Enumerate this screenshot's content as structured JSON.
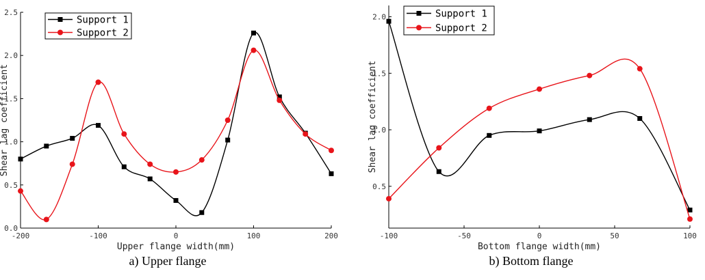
{
  "chart_data": [
    {
      "type": "line",
      "caption": "a) Upper flange",
      "xlabel": "Upper flange width(mm)",
      "ylabel": "Shear lag coefficient",
      "xlim": [
        -200,
        200
      ],
      "ylim": [
        0,
        2.5
      ],
      "xticks": [
        -200,
        -100,
        0,
        100,
        200
      ],
      "yticks": [
        0.0,
        0.5,
        1.0,
        1.5,
        2.0,
        2.5
      ],
      "ytick_labels": [
        "0.0",
        "0.5",
        "1.0",
        "1.5",
        "2.0",
        "2.5"
      ],
      "legend_position": "top-left",
      "series": [
        {
          "name": "Support 1",
          "color": "#000000",
          "marker": "square",
          "x": [
            -200,
            -166.7,
            -133.3,
            -100,
            -66.7,
            -33.3,
            0,
            33.3,
            66.7,
            100,
            133.3,
            166.7,
            200
          ],
          "y": [
            0.8,
            0.95,
            1.04,
            1.19,
            0.71,
            0.57,
            0.32,
            0.18,
            1.02,
            2.26,
            1.52,
            1.1,
            0.63
          ]
        },
        {
          "name": "Support 2",
          "color": "#e8141a",
          "marker": "circle",
          "x": [
            -200,
            -166.7,
            -133.3,
            -100,
            -66.7,
            -33.3,
            0,
            33.3,
            66.7,
            100,
            133.3,
            166.7,
            200
          ],
          "y": [
            0.43,
            0.1,
            0.74,
            1.69,
            1.09,
            0.74,
            0.65,
            0.79,
            1.25,
            2.06,
            1.48,
            1.09,
            0.9
          ]
        }
      ]
    },
    {
      "type": "line",
      "caption": "b) Bottom flange",
      "xlabel": "Bottom flange width(mm)",
      "ylabel": "Shear lag coefficient",
      "xlim": [
        -100,
        100
      ],
      "ylim": [
        0.13,
        2.1
      ],
      "xticks": [
        -100,
        -50,
        0,
        50,
        100
      ],
      "yticks": [
        0.5,
        1.0,
        1.5,
        2.0
      ],
      "ytick_labels": [
        "0.5",
        "1.0",
        "1.5",
        "2.0"
      ],
      "legend_position": "top-left",
      "series": [
        {
          "name": "Support 1",
          "color": "#000000",
          "marker": "square",
          "x": [
            -100,
            -66.7,
            -33.3,
            0,
            33.3,
            66.7,
            100
          ],
          "y": [
            1.96,
            0.63,
            0.95,
            0.99,
            1.09,
            1.1,
            0.29
          ]
        },
        {
          "name": "Support 2",
          "color": "#e8141a",
          "marker": "circle",
          "x": [
            -100,
            -66.7,
            -33.3,
            0,
            33.3,
            66.7,
            100
          ],
          "y": [
            0.39,
            0.84,
            1.19,
            1.36,
            1.48,
            1.54,
            0.21
          ]
        }
      ]
    }
  ]
}
